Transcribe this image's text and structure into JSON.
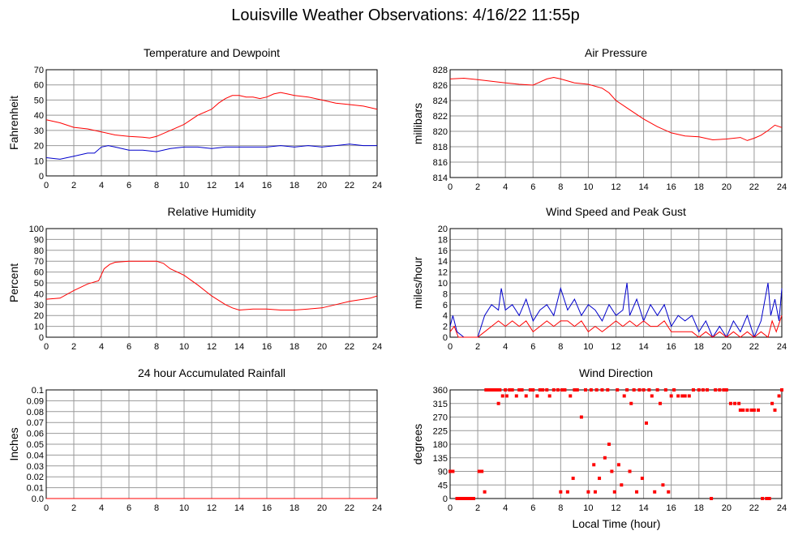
{
  "title": "Louisville Weather Observations: 4/16/22 11:55p",
  "x_label": "Local Time (hour)",
  "colors": {
    "red": "#ff0000",
    "blue": "#0000cc",
    "grid": "#999999"
  },
  "chart_data": [
    {
      "id": "temp",
      "type": "line",
      "title": "Temperature and Dewpoint",
      "ylabel": "Fahrenheit",
      "xlim": [
        0,
        24
      ],
      "ylim": [
        0,
        70
      ],
      "xticks": [
        0,
        2,
        4,
        6,
        8,
        10,
        12,
        14,
        16,
        18,
        20,
        22,
        24
      ],
      "yticks": [
        0,
        10,
        20,
        30,
        40,
        50,
        60,
        70
      ],
      "grid": true,
      "series": [
        {
          "color": "#ff0000",
          "x": [
            0,
            1,
            2,
            3,
            4,
            5,
            6,
            7,
            7.5,
            8,
            9,
            10,
            11,
            12,
            12.5,
            13,
            13.5,
            14,
            14.5,
            15,
            15.5,
            16,
            16.5,
            17,
            17.5,
            18,
            19,
            20,
            21,
            22,
            23,
            24
          ],
          "y": [
            37,
            35,
            32,
            31,
            29,
            27,
            26,
            25.5,
            25,
            26,
            30,
            34,
            40,
            44,
            48,
            51,
            53,
            53,
            52,
            52,
            51,
            52,
            54,
            55,
            54,
            53,
            52,
            50,
            48,
            47,
            46,
            44
          ]
        },
        {
          "color": "#0000cc",
          "x": [
            0,
            1,
            2,
            3,
            3.5,
            4,
            4.5,
            5,
            6,
            7,
            8,
            9,
            10,
            11,
            12,
            13,
            14,
            15,
            16,
            17,
            18,
            19,
            20,
            21,
            22,
            23,
            24
          ],
          "y": [
            12,
            11,
            13,
            15,
            15,
            19,
            20,
            19,
            17,
            17,
            16,
            18,
            19,
            19,
            18,
            19,
            19,
            19,
            19,
            20,
            19,
            20,
            19,
            20,
            21,
            20,
            20
          ]
        }
      ]
    },
    {
      "id": "pressure",
      "type": "line",
      "title": "Air Pressure",
      "ylabel": "millibars",
      "xlim": [
        0,
        24
      ],
      "ylim": [
        814,
        828
      ],
      "xticks": [
        0,
        2,
        4,
        6,
        8,
        10,
        12,
        14,
        16,
        18,
        20,
        22,
        24
      ],
      "yticks": [
        814,
        816,
        818,
        820,
        822,
        824,
        826,
        828
      ],
      "grid": true,
      "series": [
        {
          "color": "#ff0000",
          "x": [
            0,
            1,
            2,
            3,
            4,
            5,
            6,
            6.5,
            7,
            7.5,
            8,
            9,
            10,
            11,
            11.5,
            12,
            13,
            14,
            15,
            16,
            17,
            18,
            19,
            20,
            21,
            21.5,
            22,
            22.5,
            23,
            23.5,
            24
          ],
          "y": [
            826.8,
            826.9,
            826.7,
            826.5,
            826.3,
            826.1,
            826.0,
            826.4,
            826.8,
            827.0,
            826.8,
            826.3,
            826.1,
            825.6,
            825.0,
            824.0,
            822.8,
            821.6,
            820.6,
            819.8,
            819.4,
            819.3,
            818.9,
            819.0,
            819.2,
            818.8,
            819.1,
            819.5,
            820.1,
            820.8,
            820.5
          ]
        }
      ]
    },
    {
      "id": "humidity",
      "type": "line",
      "title": "Relative Humidity",
      "ylabel": "Percent",
      "xlim": [
        0,
        24
      ],
      "ylim": [
        0,
        100
      ],
      "xticks": [
        0,
        2,
        4,
        6,
        8,
        10,
        12,
        14,
        16,
        18,
        20,
        22,
        24
      ],
      "yticks": [
        0,
        10,
        20,
        30,
        40,
        50,
        60,
        70,
        80,
        90,
        100
      ],
      "grid": true,
      "series": [
        {
          "color": "#ff0000",
          "x": [
            0,
            1,
            2,
            3,
            3.8,
            4.2,
            4.6,
            5,
            6,
            7,
            8,
            8.5,
            9,
            10,
            11,
            12,
            13,
            13.5,
            14,
            15,
            16,
            17,
            18,
            19,
            20,
            21,
            22,
            23,
            23.5,
            24
          ],
          "y": [
            35,
            36,
            43,
            49,
            52,
            63,
            67,
            69,
            70,
            70,
            70,
            68,
            63,
            57,
            48,
            38,
            30,
            27,
            25,
            26,
            26,
            25,
            25,
            26,
            27,
            30,
            33,
            35,
            36,
            38
          ]
        }
      ]
    },
    {
      "id": "wind",
      "type": "line",
      "title": "Wind Speed and Peak Gust",
      "ylabel": "miles/hour",
      "xlim": [
        0,
        24
      ],
      "ylim": [
        0,
        20
      ],
      "xticks": [
        0,
        2,
        4,
        6,
        8,
        10,
        12,
        14,
        16,
        18,
        20,
        22,
        24
      ],
      "yticks": [
        0,
        2,
        4,
        6,
        8,
        10,
        12,
        14,
        16,
        18,
        20
      ],
      "grid": true,
      "series": [
        {
          "color": "#0000cc",
          "x": [
            0,
            0.2,
            0.5,
            1,
            2,
            2.5,
            3,
            3.5,
            3.7,
            4,
            4.5,
            5,
            5.5,
            6,
            6.5,
            7,
            7.5,
            8,
            8.5,
            9,
            9.5,
            10,
            10.5,
            11,
            11.5,
            12,
            12.5,
            12.8,
            13,
            13.5,
            14,
            14.5,
            15,
            15.5,
            16,
            16.5,
            17,
            17.5,
            18,
            18.5,
            19,
            19.5,
            20,
            20.5,
            21,
            21.5,
            22,
            22.5,
            23,
            23.2,
            23.5,
            23.8,
            24
          ],
          "y": [
            2,
            4,
            1,
            0,
            0,
            4,
            6,
            5,
            9,
            5,
            6,
            4,
            7,
            3,
            5,
            6,
            4,
            9,
            5,
            7,
            4,
            6,
            5,
            3,
            6,
            4,
            5,
            10,
            4,
            7,
            3,
            6,
            4,
            6,
            2,
            4,
            3,
            4,
            1,
            3,
            0,
            2,
            0,
            3,
            1,
            4,
            0,
            3,
            10,
            4,
            7,
            3,
            9
          ]
        },
        {
          "color": "#ff0000",
          "x": [
            0,
            0.3,
            0.6,
            1,
            2,
            2.5,
            3,
            3.5,
            4,
            4.5,
            5,
            5.5,
            6,
            6.5,
            7,
            7.5,
            8,
            8.5,
            9,
            9.5,
            10,
            10.5,
            11,
            11.5,
            12,
            12.5,
            13,
            13.5,
            14,
            14.5,
            15,
            15.5,
            16,
            16.5,
            17,
            17.5,
            18,
            18.5,
            19,
            19.5,
            20,
            20.5,
            21,
            21.5,
            22,
            22.5,
            23,
            23.3,
            23.6,
            24
          ],
          "y": [
            1,
            2,
            0,
            0,
            0,
            1,
            2,
            3,
            2,
            3,
            2,
            3,
            1,
            2,
            3,
            2,
            3,
            3,
            2,
            3,
            1,
            2,
            1,
            2,
            3,
            2,
            3,
            2,
            3,
            2,
            2,
            3,
            1,
            1,
            1,
            1,
            0,
            1,
            0,
            1,
            0,
            1,
            0,
            1,
            0,
            1,
            0,
            3,
            1,
            4
          ]
        }
      ]
    },
    {
      "id": "rain",
      "type": "line",
      "title": "24 hour Accumulated Rainfall",
      "ylabel": "Inches",
      "xlim": [
        0,
        24
      ],
      "ylim": [
        0,
        0.1
      ],
      "xticks": [
        0,
        2,
        4,
        6,
        8,
        10,
        12,
        14,
        16,
        18,
        20,
        22,
        24
      ],
      "yticks": [
        0.0,
        0.01,
        0.02,
        0.03,
        0.04,
        0.05,
        0.06,
        0.07,
        0.08,
        0.09,
        0.1
      ],
      "yticklabels": [
        "0.0",
        "0.01",
        "0.02",
        "0.03",
        "0.04",
        "0.05",
        "0.06",
        "0.07",
        "0.08",
        "0.09",
        "0.1"
      ],
      "grid": true,
      "series": [
        {
          "color": "#ff0000",
          "x": [
            0,
            24
          ],
          "y": [
            0,
            0
          ]
        }
      ]
    },
    {
      "id": "direction",
      "type": "scatter",
      "title": "Wind Direction",
      "ylabel": "degrees",
      "xlim": [
        0,
        24
      ],
      "ylim": [
        0,
        360
      ],
      "xticks": [
        0,
        2,
        4,
        6,
        8,
        10,
        12,
        14,
        16,
        18,
        20,
        22,
        24
      ],
      "yticks": [
        0,
        45,
        90,
        135,
        180,
        225,
        270,
        315,
        360
      ],
      "grid": true,
      "series": [
        {
          "color": "#ff0000",
          "x": [
            0,
            0.2,
            0.5,
            0.7,
            0.9,
            1.1,
            1.3,
            1.5,
            1.7,
            2.1,
            2.3,
            2.5,
            2.6,
            2.8,
            3.0,
            3.2,
            3.4,
            3.5,
            3.6,
            3.8,
            4.0,
            4.1,
            4.3,
            4.5,
            4.8,
            5.0,
            5.2,
            5.5,
            5.8,
            6.0,
            6.3,
            6.5,
            6.7,
            7.0,
            7.2,
            7.5,
            7.8,
            8.0,
            8.1,
            8.3,
            8.5,
            8.7,
            8.9,
            9.0,
            9.2,
            9.5,
            9.8,
            10.0,
            10.2,
            10.4,
            10.5,
            10.6,
            10.8,
            11.0,
            11.2,
            11.4,
            11.5,
            11.7,
            11.9,
            12.1,
            12.2,
            12.4,
            12.6,
            12.8,
            13.0,
            13.1,
            13.3,
            13.5,
            13.7,
            13.9,
            14.0,
            14.2,
            14.4,
            14.6,
            14.8,
            15.0,
            15.2,
            15.4,
            15.6,
            15.8,
            16.0,
            16.2,
            16.5,
            16.8,
            17.0,
            17.3,
            17.6,
            18.0,
            18.3,
            18.6,
            18.9,
            19.2,
            19.5,
            19.8,
            20.0,
            20.3,
            20.6,
            20.9,
            21.0,
            21.2,
            21.5,
            21.8,
            22.0,
            22.3,
            22.6,
            22.9,
            23.1,
            23.3,
            23.5,
            23.8,
            24.0
          ],
          "y": [
            90,
            90,
            0,
            0,
            0,
            0,
            0,
            0,
            0,
            90,
            90,
            22,
            360,
            360,
            360,
            360,
            360,
            315,
            360,
            340,
            360,
            340,
            360,
            360,
            340,
            360,
            360,
            340,
            360,
            360,
            340,
            360,
            360,
            360,
            340,
            360,
            360,
            22,
            360,
            360,
            22,
            340,
            67,
            360,
            360,
            270,
            360,
            22,
            360,
            112,
            22,
            360,
            67,
            360,
            135,
            360,
            180,
            90,
            22,
            360,
            112,
            45,
            340,
            360,
            90,
            315,
            360,
            22,
            360,
            67,
            360,
            250,
            360,
            340,
            22,
            360,
            315,
            45,
            360,
            22,
            340,
            360,
            340,
            340,
            340,
            340,
            360,
            360,
            360,
            360,
            0,
            360,
            360,
            360,
            360,
            315,
            315,
            315,
            293,
            293,
            293,
            293,
            293,
            293,
            0,
            0,
            0,
            315,
            293,
            340,
            360
          ]
        }
      ]
    }
  ]
}
